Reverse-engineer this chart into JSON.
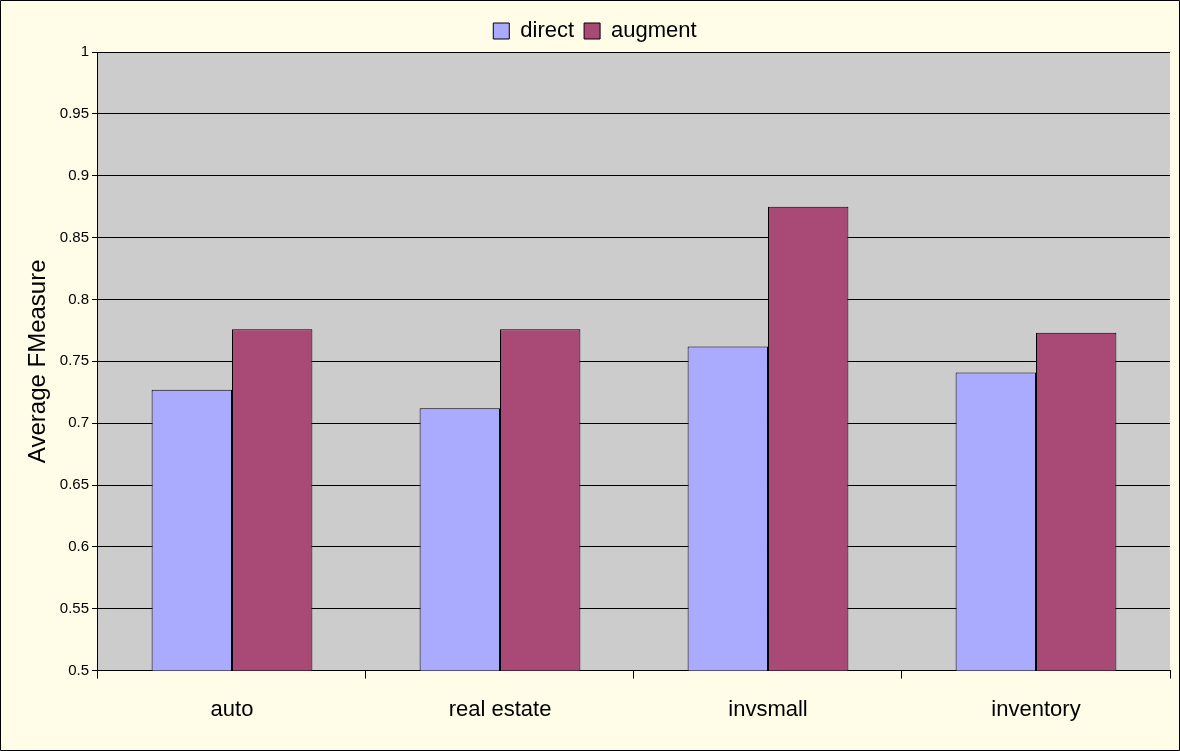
{
  "chart_data": {
    "type": "bar",
    "ylabel": "Average FMeasure",
    "categories": [
      "auto",
      "real estate",
      "invsmall",
      "inventory"
    ],
    "series": [
      {
        "name": "direct",
        "color": "#aaaaff",
        "values": [
          0.727,
          0.712,
          0.762,
          0.741
        ]
      },
      {
        "name": "augment",
        "color": "#a94a76",
        "values": [
          0.776,
          0.776,
          0.875,
          0.773
        ]
      }
    ],
    "ylim": [
      0.5,
      1
    ],
    "yticks": [
      0.5,
      0.55,
      0.6,
      0.65,
      0.7,
      0.75,
      0.8,
      0.85,
      0.9,
      0.95,
      1
    ],
    "grid": "y",
    "legend": "top"
  }
}
